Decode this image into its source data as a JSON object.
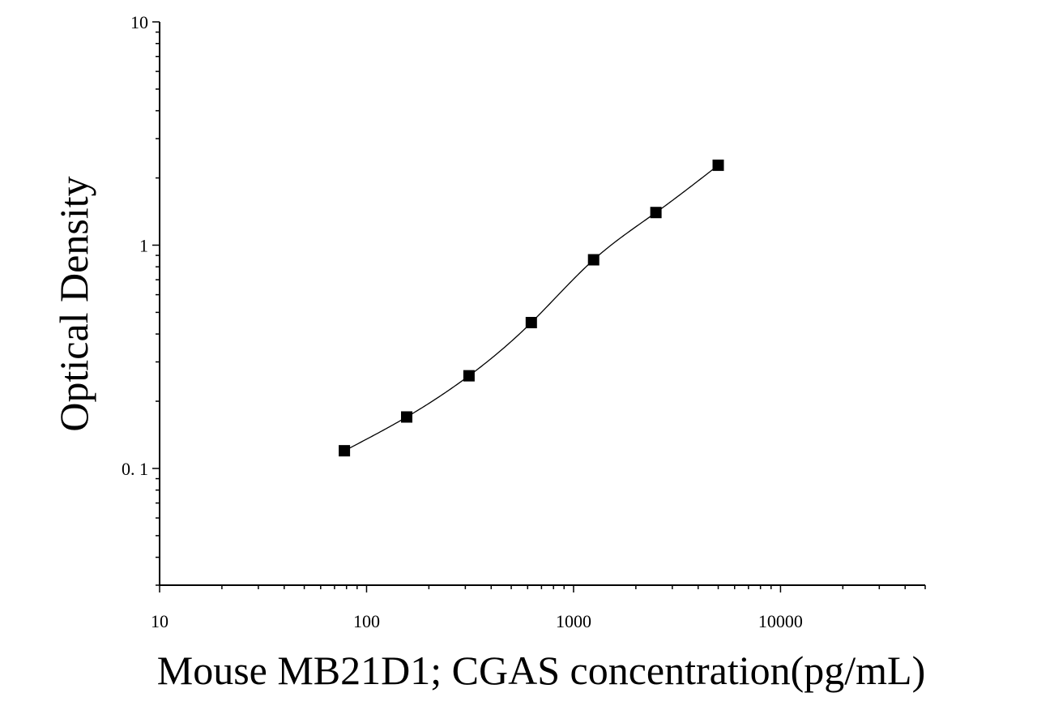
{
  "chart_data": {
    "type": "scatter",
    "title": "",
    "xlabel": "Mouse MB21D1;  CGAS concentration(pg/mL)",
    "ylabel": "Optical Density",
    "x_scale": "log",
    "y_scale": "log",
    "xlim": [
      10,
      50000
    ],
    "ylim": [
      0.03,
      10
    ],
    "x_ticks": [
      10,
      100,
      1000,
      10000
    ],
    "x_tick_labels": [
      "10",
      "100",
      "1000",
      "10000"
    ],
    "y_ticks": [
      0.1,
      1,
      10
    ],
    "y_tick_labels": [
      "0. 1",
      "1",
      "10"
    ],
    "grid": false,
    "legend": "none",
    "series": [
      {
        "marker": "square",
        "color": "#000000",
        "x": [
          78.13,
          156.25,
          312.5,
          625,
          1250,
          2500,
          5000
        ],
        "y": [
          0.12,
          0.17,
          0.26,
          0.45,
          0.86,
          1.4,
          2.28
        ]
      }
    ],
    "fit_curve": {
      "color": "#000000",
      "style": "solid",
      "through": "series-0"
    }
  }
}
